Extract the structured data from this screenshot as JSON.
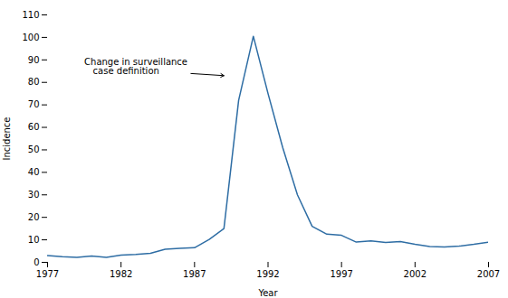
{
  "chart_data": {
    "type": "line",
    "x": [
      1977,
      1978,
      1979,
      1980,
      1981,
      1982,
      1983,
      1984,
      1985,
      1986,
      1987,
      1988,
      1989,
      1990,
      1991,
      1992,
      1993,
      1994,
      1995,
      1996,
      1997,
      1998,
      1999,
      2000,
      2001,
      2002,
      2003,
      2004,
      2005,
      2006,
      2007
    ],
    "values": [
      3.0,
      2.5,
      2.2,
      2.8,
      2.2,
      3.2,
      3.5,
      4.0,
      5.8,
      6.2,
      6.5,
      10.2,
      15.0,
      72.0,
      100.5,
      75.0,
      51.0,
      30.0,
      16.0,
      12.5,
      12.0,
      9.0,
      9.5,
      8.8,
      9.2,
      8.0,
      7.0,
      6.8,
      7.2,
      8.0,
      9.0
    ],
    "color": "#2e6da4",
    "xlabel": "Year",
    "ylabel": "Incidence",
    "xlim": [
      1977,
      2007
    ],
    "ylim": [
      0,
      110
    ],
    "xticks": [
      1977,
      1982,
      1987,
      1992,
      1997,
      2002,
      2007
    ],
    "yticks": [
      0,
      10,
      20,
      30,
      40,
      50,
      60,
      70,
      80,
      90,
      100,
      110
    ],
    "grid": false,
    "annotations": [
      {
        "text": "Change in surveillance\n   case definition",
        "x": 1979.5,
        "y": 87.0,
        "arrow_x": 1989.0,
        "arrow_y": 83.0
      }
    ]
  }
}
